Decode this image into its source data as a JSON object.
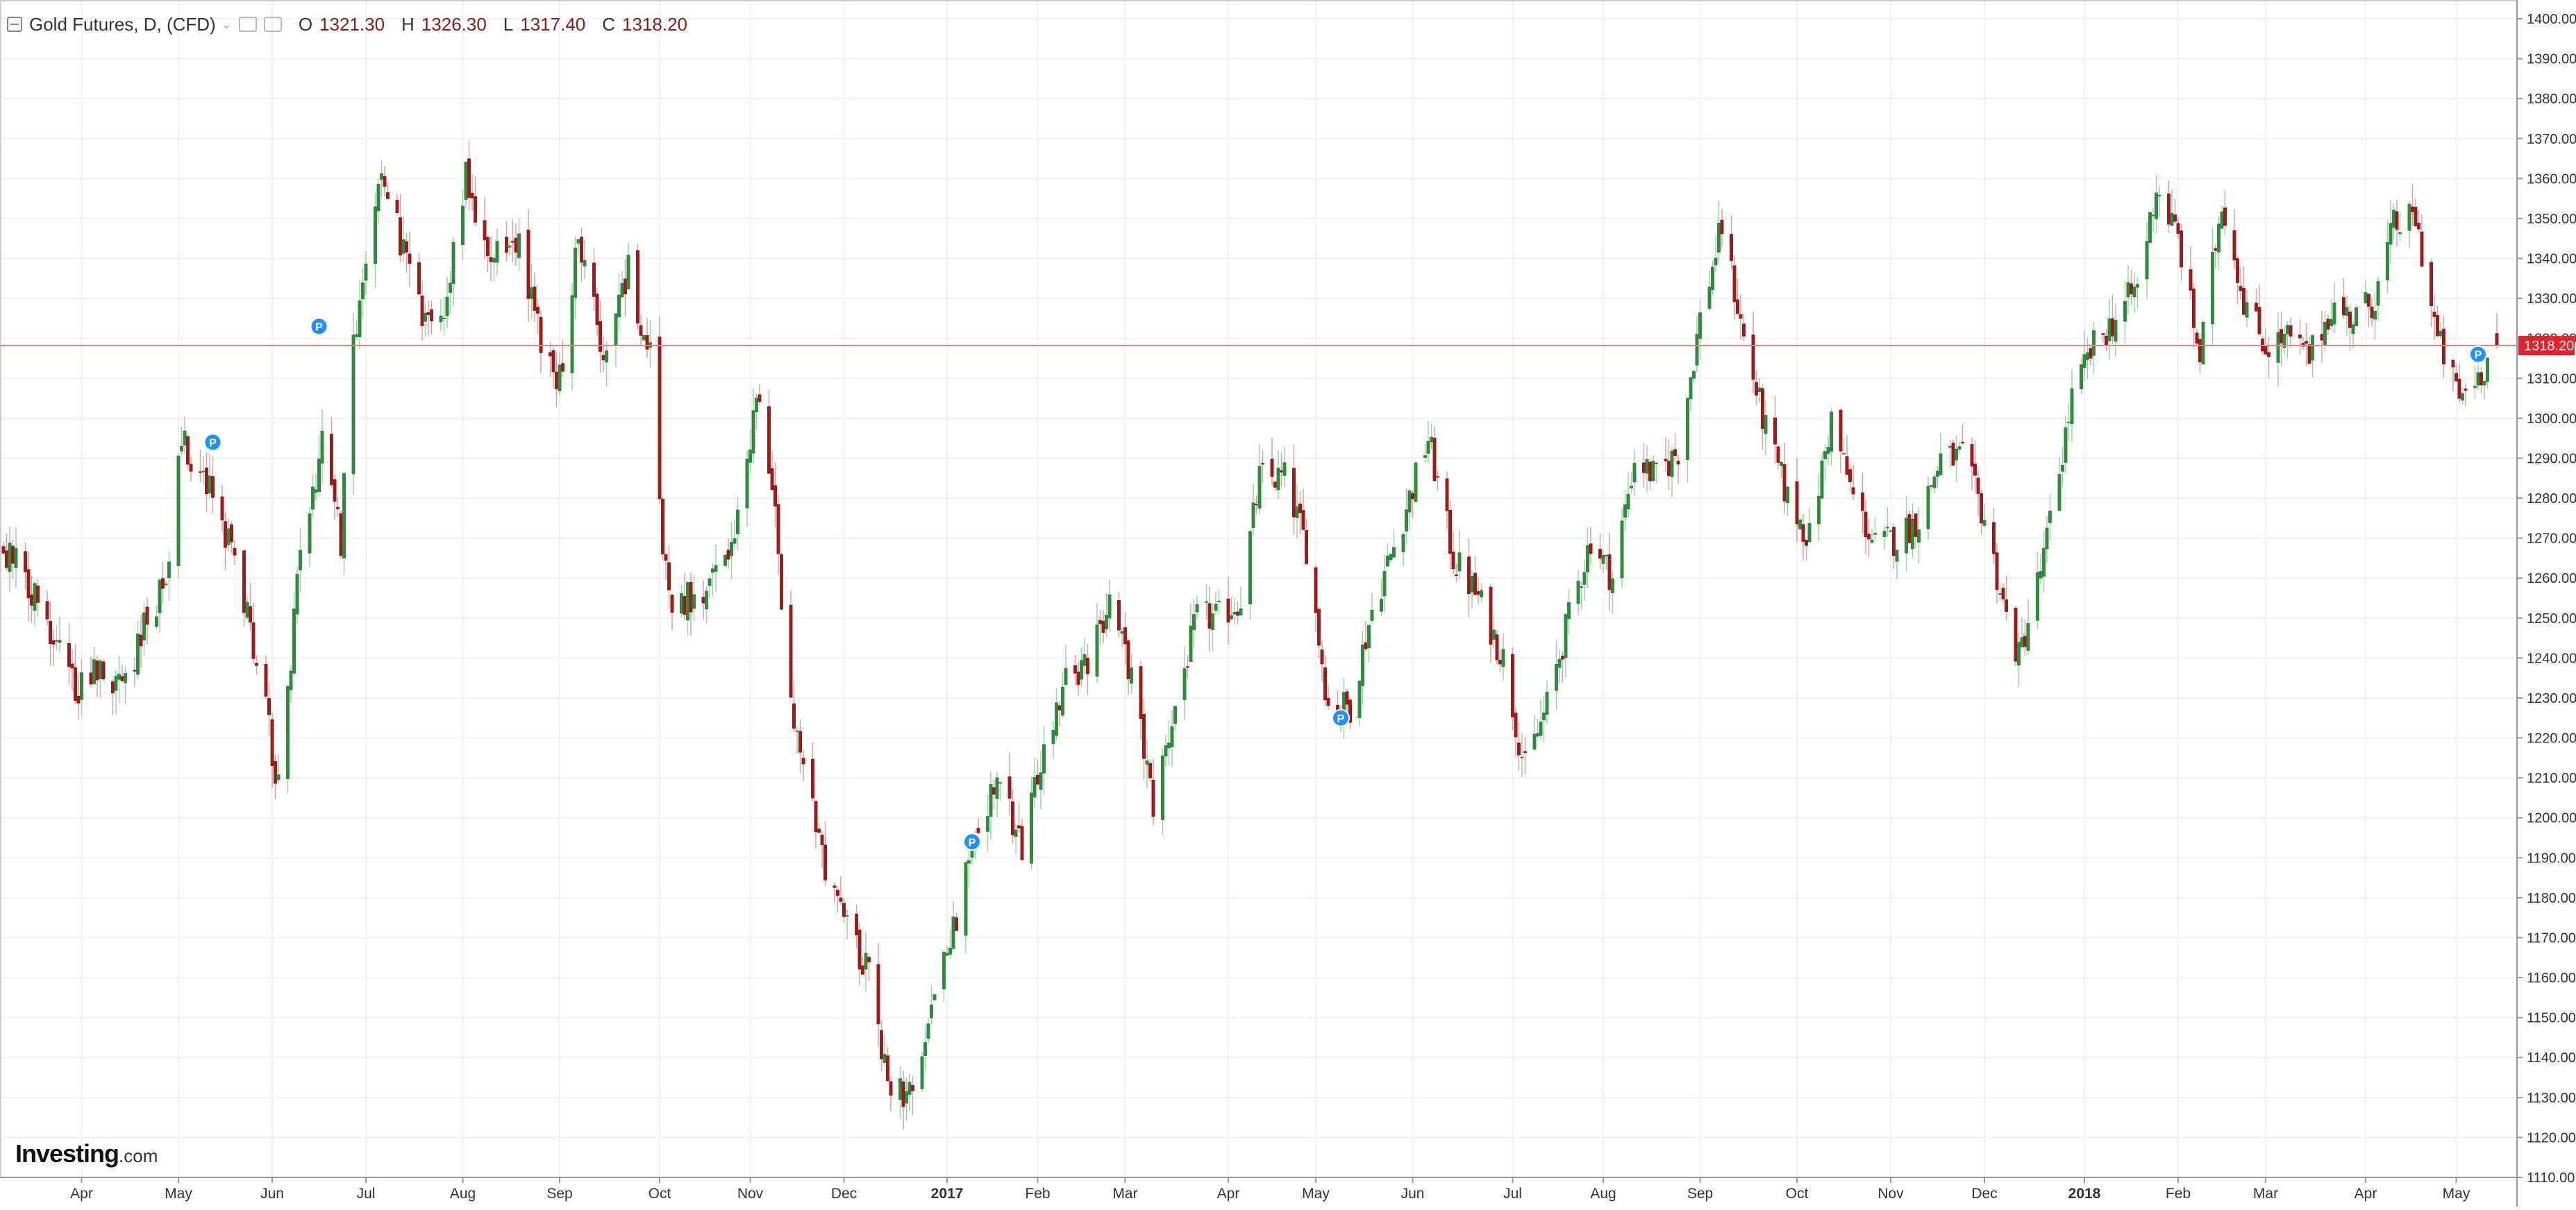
{
  "header": {
    "symbol": "Gold Futures, D, (CFD)",
    "open_label": "O",
    "open": "1321.30",
    "high_label": "H",
    "high": "1326.30",
    "low_label": "L",
    "low": "1317.40",
    "close_label": "C",
    "close": "1318.20"
  },
  "brand": {
    "name": "Investing",
    "suffix": ".com"
  },
  "icons": {
    "collapse": "collapse-icon",
    "dropdown": "chevron-down-icon",
    "settings": "settings-icon",
    "visibility": "eye-icon"
  },
  "colors": {
    "up": "#2e8b3e",
    "down": "#9b1c1c",
    "price_line": "#f08080",
    "price_badge": "#e8202a",
    "marker": "#1e90ff"
  },
  "chart_data": {
    "type": "candlestick",
    "title": "Gold Futures, D, (CFD)",
    "ylim": [
      1110,
      1400
    ],
    "y_ticks": [
      "1110.00",
      "1120.00",
      "1130.00",
      "1140.00",
      "1150.00",
      "1160.00",
      "1170.00",
      "1180.00",
      "1190.00",
      "1200.00",
      "1210.00",
      "1220.00",
      "1230.00",
      "1240.00",
      "1250.00",
      "1260.00",
      "1270.00",
      "1280.00",
      "1290.00",
      "1300.00",
      "1310.00",
      "1320.00",
      "1330.00",
      "1340.00",
      "1350.00",
      "1360.00",
      "1370.00",
      "1380.00",
      "1390.00",
      "1400.00"
    ],
    "x_ticks": [
      {
        "label": "Apr",
        "date": "2016-04-01"
      },
      {
        "label": "May",
        "date": "2016-05-02"
      },
      {
        "label": "Jun",
        "date": "2016-06-01"
      },
      {
        "label": "Jul",
        "date": "2016-07-01"
      },
      {
        "label": "Aug",
        "date": "2016-08-01"
      },
      {
        "label": "Sep",
        "date": "2016-09-01"
      },
      {
        "label": "Oct",
        "date": "2016-10-03"
      },
      {
        "label": "Nov",
        "date": "2016-11-01"
      },
      {
        "label": "Dec",
        "date": "2016-12-01"
      },
      {
        "label": "2017",
        "date": "2017-01-03"
      },
      {
        "label": "Feb",
        "date": "2017-02-01"
      },
      {
        "label": "Mar",
        "date": "2017-03-01"
      },
      {
        "label": "Apr",
        "date": "2017-04-03"
      },
      {
        "label": "May",
        "date": "2017-05-01"
      },
      {
        "label": "Jun",
        "date": "2017-06-01"
      },
      {
        "label": "Jul",
        "date": "2017-07-03"
      },
      {
        "label": "Aug",
        "date": "2017-08-01"
      },
      {
        "label": "Sep",
        "date": "2017-09-01"
      },
      {
        "label": "Oct",
        "date": "2017-10-02"
      },
      {
        "label": "Nov",
        "date": "2017-11-01"
      },
      {
        "label": "Dec",
        "date": "2017-12-01"
      },
      {
        "label": "2018",
        "date": "2018-01-02"
      },
      {
        "label": "Feb",
        "date": "2018-02-01"
      },
      {
        "label": "Mar",
        "date": "2018-03-01"
      },
      {
        "label": "Apr",
        "date": "2018-04-02"
      },
      {
        "label": "May",
        "date": "2018-05-01"
      }
    ],
    "date_range": [
      "2016-03-07",
      "2018-05-14"
    ],
    "current_price": 1318.2,
    "current_price_label": "1318.20",
    "markers": [
      {
        "label": "P",
        "date": "2016-05-13",
        "price": 1294
      },
      {
        "label": "P",
        "date": "2016-06-16",
        "price": 1323
      },
      {
        "label": "P",
        "date": "2017-01-11",
        "price": 1194
      },
      {
        "label": "P",
        "date": "2017-05-09",
        "price": 1225
      },
      {
        "label": "P",
        "date": "2018-05-08",
        "price": 1316
      }
    ],
    "close_path": [
      {
        "date": "2016-03-07",
        "close": 1268
      },
      {
        "date": "2016-03-18",
        "close": 1255
      },
      {
        "date": "2016-03-31",
        "close": 1232
      },
      {
        "date": "2016-04-08",
        "close": 1238
      },
      {
        "date": "2016-04-15",
        "close": 1232
      },
      {
        "date": "2016-04-22",
        "close": 1250
      },
      {
        "date": "2016-04-29",
        "close": 1260
      },
      {
        "date": "2016-05-03",
        "close": 1295
      },
      {
        "date": "2016-05-10",
        "close": 1285
      },
      {
        "date": "2016-05-17",
        "close": 1272
      },
      {
        "date": "2016-05-24",
        "close": 1250
      },
      {
        "date": "2016-05-31",
        "close": 1222
      },
      {
        "date": "2016-06-03",
        "close": 1208
      },
      {
        "date": "2016-06-10",
        "close": 1265
      },
      {
        "date": "2016-06-17",
        "close": 1295
      },
      {
        "date": "2016-06-23",
        "close": 1270
      },
      {
        "date": "2016-06-27",
        "close": 1320
      },
      {
        "date": "2016-07-06",
        "close": 1360
      },
      {
        "date": "2016-07-12",
        "close": 1345
      },
      {
        "date": "2016-07-20",
        "close": 1322
      },
      {
        "date": "2016-07-27",
        "close": 1330
      },
      {
        "date": "2016-08-02",
        "close": 1360
      },
      {
        "date": "2016-08-10",
        "close": 1340
      },
      {
        "date": "2016-08-18",
        "close": 1345
      },
      {
        "date": "2016-08-26",
        "close": 1320
      },
      {
        "date": "2016-09-01",
        "close": 1310
      },
      {
        "date": "2016-09-07",
        "close": 1345
      },
      {
        "date": "2016-09-15",
        "close": 1315
      },
      {
        "date": "2016-09-23",
        "close": 1338
      },
      {
        "date": "2016-09-30",
        "close": 1315
      },
      {
        "date": "2016-10-04",
        "close": 1270
      },
      {
        "date": "2016-10-07",
        "close": 1255
      },
      {
        "date": "2016-10-17",
        "close": 1255
      },
      {
        "date": "2016-10-27",
        "close": 1268
      },
      {
        "date": "2016-11-03",
        "close": 1305
      },
      {
        "date": "2016-11-09",
        "close": 1275
      },
      {
        "date": "2016-11-14",
        "close": 1228
      },
      {
        "date": "2016-11-24",
        "close": 1190
      },
      {
        "date": "2016-12-01",
        "close": 1175
      },
      {
        "date": "2016-12-09",
        "close": 1160
      },
      {
        "date": "2016-12-15",
        "close": 1135
      },
      {
        "date": "2016-12-22",
        "close": 1130
      },
      {
        "date": "2016-12-29",
        "close": 1150
      },
      {
        "date": "2017-01-06",
        "close": 1175
      },
      {
        "date": "2017-01-13",
        "close": 1197
      },
      {
        "date": "2017-01-20",
        "close": 1210
      },
      {
        "date": "2017-01-27",
        "close": 1190
      },
      {
        "date": "2017-02-03",
        "close": 1218
      },
      {
        "date": "2017-02-10",
        "close": 1235
      },
      {
        "date": "2017-02-17",
        "close": 1238
      },
      {
        "date": "2017-02-24",
        "close": 1255
      },
      {
        "date": "2017-03-03",
        "close": 1235
      },
      {
        "date": "2017-03-10",
        "close": 1203
      },
      {
        "date": "2017-03-17",
        "close": 1228
      },
      {
        "date": "2017-03-24",
        "close": 1250
      },
      {
        "date": "2017-03-31",
        "close": 1250
      },
      {
        "date": "2017-04-07",
        "close": 1255
      },
      {
        "date": "2017-04-13",
        "close": 1285
      },
      {
        "date": "2017-04-21",
        "close": 1285
      },
      {
        "date": "2017-04-28",
        "close": 1268
      },
      {
        "date": "2017-05-05",
        "close": 1228
      },
      {
        "date": "2017-05-12",
        "close": 1228
      },
      {
        "date": "2017-05-19",
        "close": 1252
      },
      {
        "date": "2017-05-26",
        "close": 1268
      },
      {
        "date": "2017-06-06",
        "close": 1295
      },
      {
        "date": "2017-06-14",
        "close": 1265
      },
      {
        "date": "2017-06-22",
        "close": 1255
      },
      {
        "date": "2017-06-30",
        "close": 1240
      },
      {
        "date": "2017-07-07",
        "close": 1212
      },
      {
        "date": "2017-07-14",
        "close": 1228
      },
      {
        "date": "2017-07-21",
        "close": 1250
      },
      {
        "date": "2017-07-28",
        "close": 1270
      },
      {
        "date": "2017-08-04",
        "close": 1260
      },
      {
        "date": "2017-08-11",
        "close": 1290
      },
      {
        "date": "2017-08-18",
        "close": 1285
      },
      {
        "date": "2017-08-25",
        "close": 1292
      },
      {
        "date": "2017-09-01",
        "close": 1325
      },
      {
        "date": "2017-09-08",
        "close": 1348
      },
      {
        "date": "2017-09-15",
        "close": 1320
      },
      {
        "date": "2017-09-22",
        "close": 1297
      },
      {
        "date": "2017-09-29",
        "close": 1280
      },
      {
        "date": "2017-10-06",
        "close": 1270
      },
      {
        "date": "2017-10-13",
        "close": 1300
      },
      {
        "date": "2017-10-20",
        "close": 1280
      },
      {
        "date": "2017-10-27",
        "close": 1268
      },
      {
        "date": "2017-11-03",
        "close": 1270
      },
      {
        "date": "2017-11-10",
        "close": 1275
      },
      {
        "date": "2017-11-17",
        "close": 1290
      },
      {
        "date": "2017-11-24",
        "close": 1290
      },
      {
        "date": "2017-12-01",
        "close": 1275
      },
      {
        "date": "2017-12-08",
        "close": 1250
      },
      {
        "date": "2017-12-12",
        "close": 1240
      },
      {
        "date": "2017-12-20",
        "close": 1265
      },
      {
        "date": "2017-12-29",
        "close": 1305
      },
      {
        "date": "2018-01-05",
        "close": 1318
      },
      {
        "date": "2018-01-12",
        "close": 1325
      },
      {
        "date": "2018-01-19",
        "close": 1333
      },
      {
        "date": "2018-01-25",
        "close": 1358
      },
      {
        "date": "2018-02-01",
        "close": 1345
      },
      {
        "date": "2018-02-08",
        "close": 1315
      },
      {
        "date": "2018-02-15",
        "close": 1355
      },
      {
        "date": "2018-02-22",
        "close": 1330
      },
      {
        "date": "2018-03-01",
        "close": 1318
      },
      {
        "date": "2018-03-08",
        "close": 1320
      },
      {
        "date": "2018-03-15",
        "close": 1315
      },
      {
        "date": "2018-03-22",
        "close": 1328
      },
      {
        "date": "2018-03-29",
        "close": 1325
      },
      {
        "date": "2018-04-05",
        "close": 1330
      },
      {
        "date": "2018-04-11",
        "close": 1348
      },
      {
        "date": "2018-04-18",
        "close": 1350
      },
      {
        "date": "2018-04-25",
        "close": 1320
      },
      {
        "date": "2018-05-02",
        "close": 1305
      },
      {
        "date": "2018-05-09",
        "close": 1312
      },
      {
        "date": "2018-05-14",
        "close": 1318
      }
    ]
  }
}
